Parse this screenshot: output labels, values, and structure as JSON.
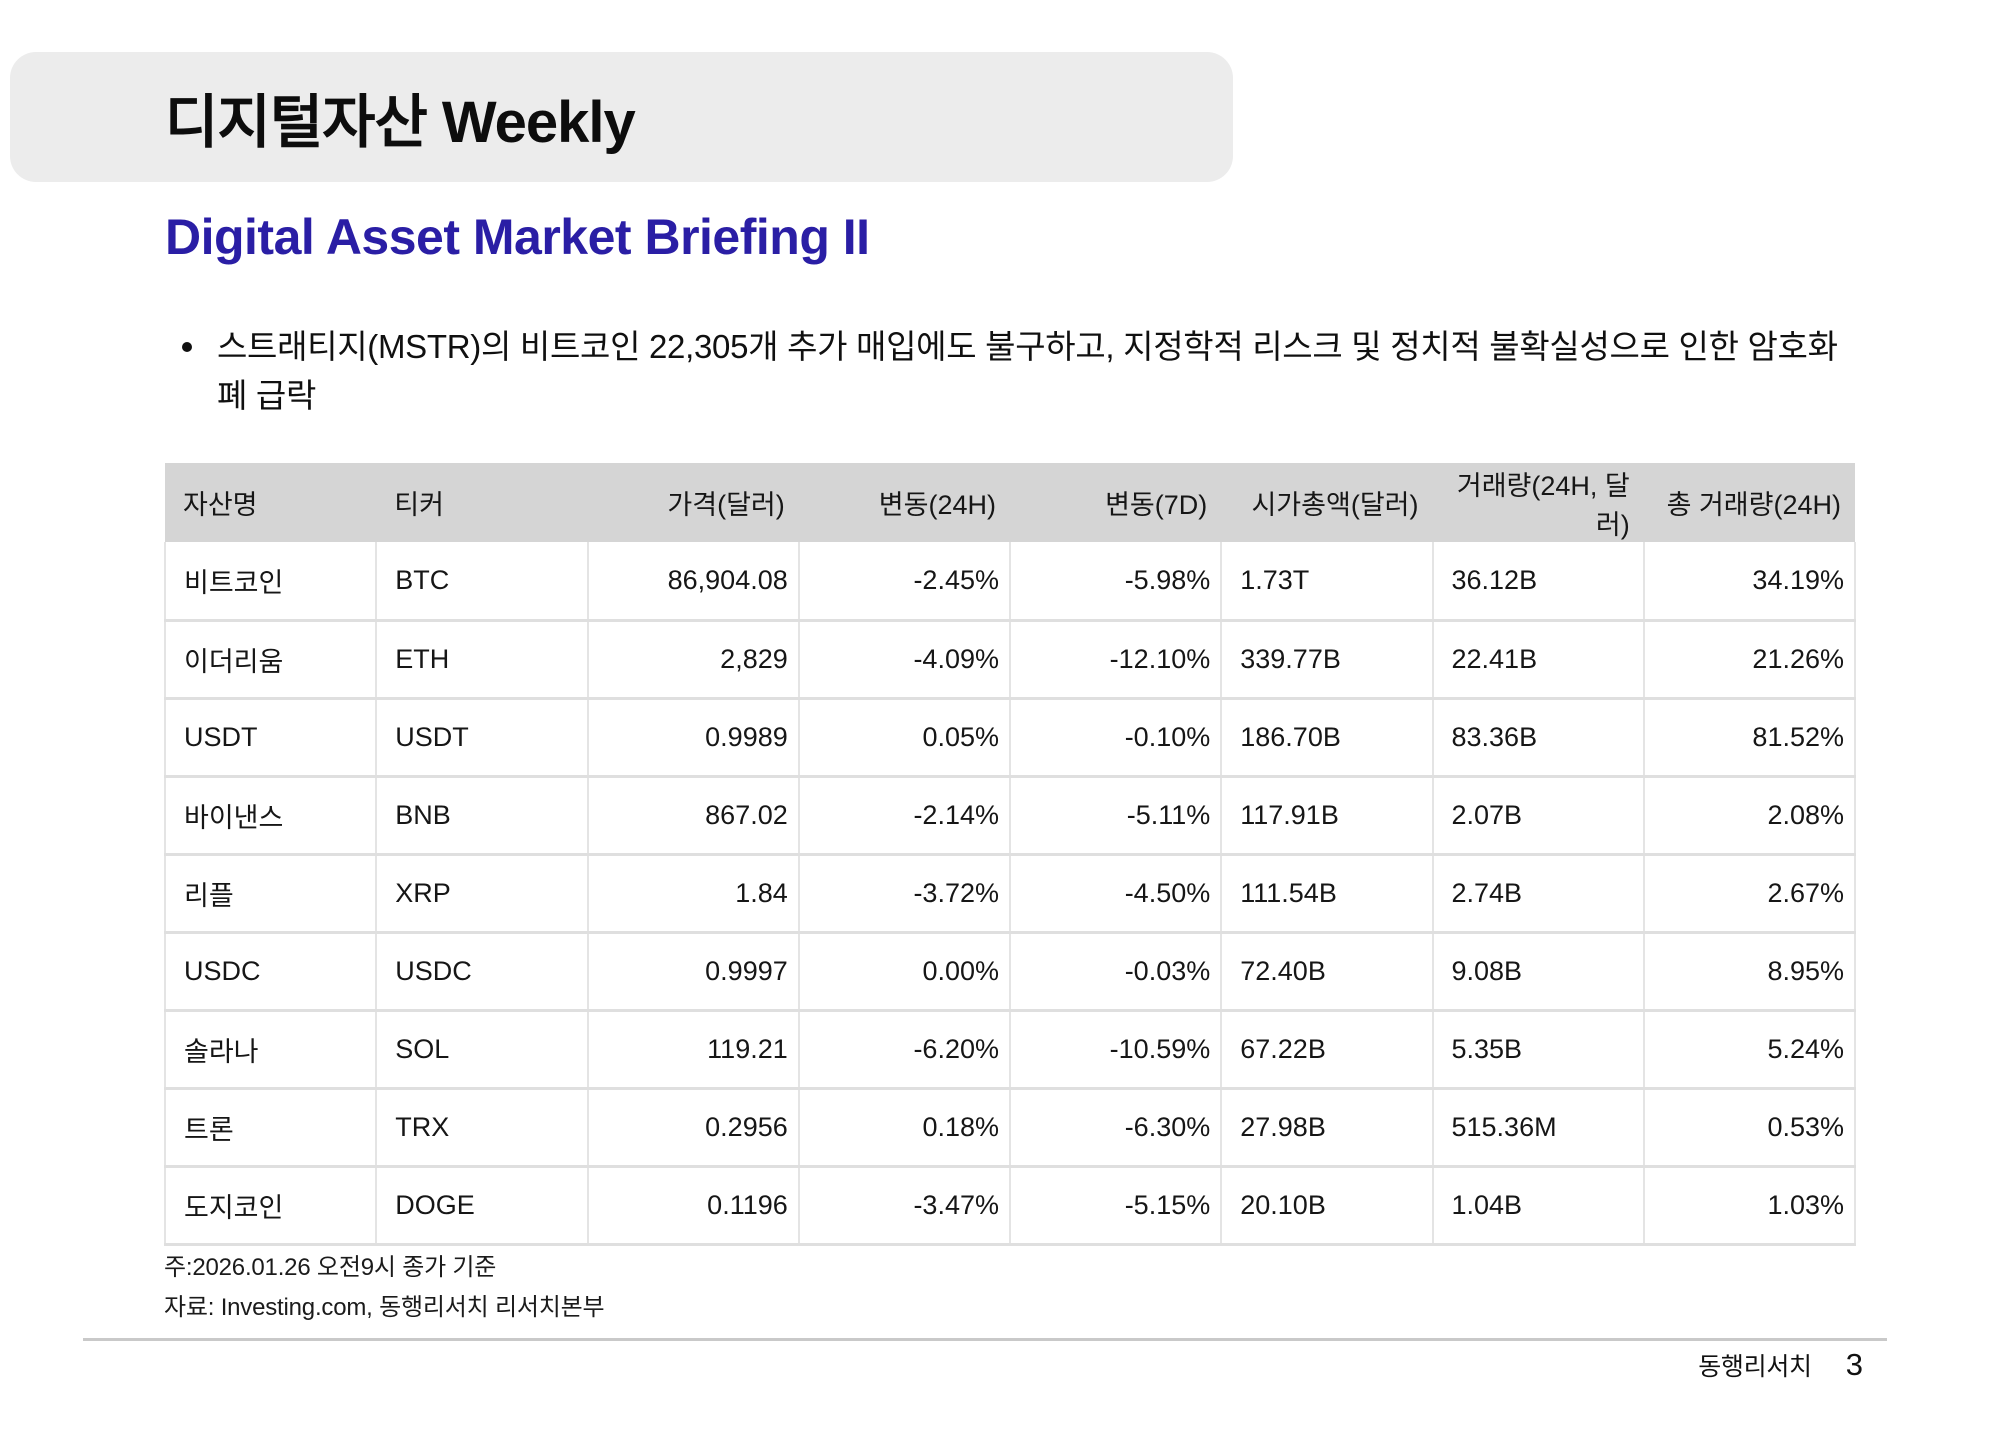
{
  "header": {
    "title": "디지털자산 Weekly"
  },
  "subtitle": "Digital Asset Market Briefing II",
  "bullets": [
    {
      "text": "스트래티지(MSTR)의 비트코인 22,305개 추가 매입에도 불구하고, 지정학적 리스크 및 정치적 불확실성으로 인한 암호화폐 급락"
    }
  ],
  "table": {
    "columns": [
      {
        "label": "자산명",
        "align": "left"
      },
      {
        "label": "티커",
        "align": "left"
      },
      {
        "label": "가격(달러)",
        "align": "right"
      },
      {
        "label": "변동(24H)",
        "align": "right"
      },
      {
        "label": "변동(7D)",
        "align": "right"
      },
      {
        "label": "시가총액(달러)",
        "align": "right",
        "data_align": "left"
      },
      {
        "label": "거래량(24H, 달러)",
        "align": "right",
        "data_align": "left"
      },
      {
        "label": "총 거래량(24H)",
        "align": "right"
      }
    ],
    "rows": [
      [
        "비트코인",
        "BTC",
        "86,904.08",
        "-2.45%",
        "-5.98%",
        "1.73T",
        "36.12B",
        "34.19%"
      ],
      [
        "이더리움",
        "ETH",
        "2,829",
        "-4.09%",
        "-12.10%",
        "339.77B",
        "22.41B",
        "21.26%"
      ],
      [
        "USDT",
        "USDT",
        "0.9989",
        "0.05%",
        "-0.10%",
        "186.70B",
        "83.36B",
        "81.52%"
      ],
      [
        "바이낸스",
        "BNB",
        "867.02",
        "-2.14%",
        "-5.11%",
        "117.91B",
        "2.07B",
        "2.08%"
      ],
      [
        "리플",
        "XRP",
        "1.84",
        "-3.72%",
        "-4.50%",
        "111.54B",
        "2.74B",
        "2.67%"
      ],
      [
        "USDC",
        "USDC",
        "0.9997",
        "0.00%",
        "-0.03%",
        "72.40B",
        "9.08B",
        "8.95%"
      ],
      [
        "솔라나",
        "SOL",
        "119.21",
        "-6.20%",
        "-10.59%",
        "67.22B",
        "5.35B",
        "5.24%"
      ],
      [
        "트론",
        "TRX",
        "0.2956",
        "0.18%",
        "-6.30%",
        "27.98B",
        "515.36M",
        "0.53%"
      ],
      [
        "도지코인",
        "DOGE",
        "0.1196",
        "-3.47%",
        "-5.15%",
        "20.10B",
        "1.04B",
        "1.03%"
      ]
    ]
  },
  "notes": [
    "주:2026.01.26 오전9시 종가 기준",
    "자료: Investing.com, 동행리서치 리서치본부"
  ],
  "footer": {
    "brand": "동행리서치",
    "page_number": "3"
  },
  "colors": {
    "accent_blue": "#2A1EA5",
    "title_box_bg": "#ECECEC",
    "table_header_bg": "#D5D5D5",
    "grid_line_horizontal": "#DFDFDF",
    "grid_line_vertical": "#E4E4E4",
    "footer_rule": "#C9C9C9"
  }
}
